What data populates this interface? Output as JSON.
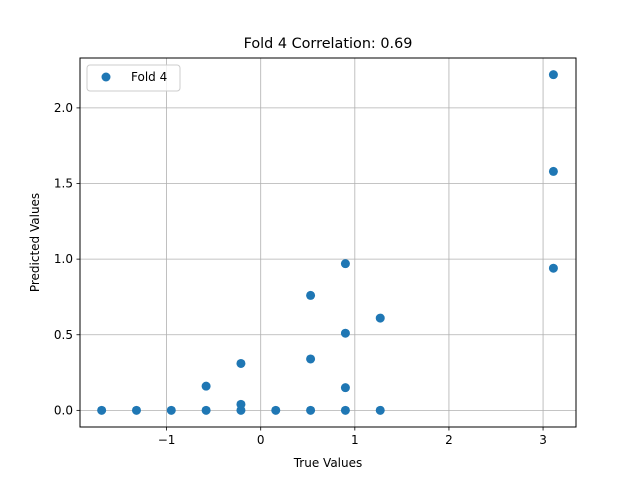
{
  "chart_data": {
    "type": "scatter",
    "title": "Fold 4 Correlation: 0.69",
    "xlabel": "True Values",
    "ylabel": "Predicted Values",
    "xlim": [
      -1.92,
      3.35
    ],
    "ylim": [
      -0.11,
      2.33
    ],
    "xticks": [
      -1,
      0,
      1,
      2,
      3
    ],
    "xtick_labels": [
      "−1",
      "0",
      "1",
      "2",
      "3"
    ],
    "yticks": [
      0.0,
      0.5,
      1.0,
      1.5,
      2.0
    ],
    "ytick_labels": [
      "0.0",
      "0.5",
      "1.0",
      "1.5",
      "2.0"
    ],
    "grid": true,
    "legend_position": "top-left",
    "color": "#1f77b4",
    "series": [
      {
        "name": "Fold 4",
        "points": [
          {
            "x": -1.69,
            "y": 0.0
          },
          {
            "x": -1.32,
            "y": 0.0
          },
          {
            "x": -0.95,
            "y": 0.0
          },
          {
            "x": -0.58,
            "y": 0.0
          },
          {
            "x": -0.58,
            "y": 0.16
          },
          {
            "x": -0.21,
            "y": 0.0
          },
          {
            "x": -0.21,
            "y": 0.04
          },
          {
            "x": -0.21,
            "y": 0.31
          },
          {
            "x": 0.16,
            "y": 0.0
          },
          {
            "x": 0.53,
            "y": 0.0
          },
          {
            "x": 0.53,
            "y": 0.34
          },
          {
            "x": 0.53,
            "y": 0.76
          },
          {
            "x": 0.9,
            "y": 0.0
          },
          {
            "x": 0.9,
            "y": 0.15
          },
          {
            "x": 0.9,
            "y": 0.51
          },
          {
            "x": 0.9,
            "y": 0.97
          },
          {
            "x": 1.27,
            "y": 0.0
          },
          {
            "x": 1.27,
            "y": 0.61
          },
          {
            "x": 3.11,
            "y": 0.94
          },
          {
            "x": 3.11,
            "y": 1.58
          },
          {
            "x": 3.11,
            "y": 2.22
          }
        ]
      }
    ]
  }
}
